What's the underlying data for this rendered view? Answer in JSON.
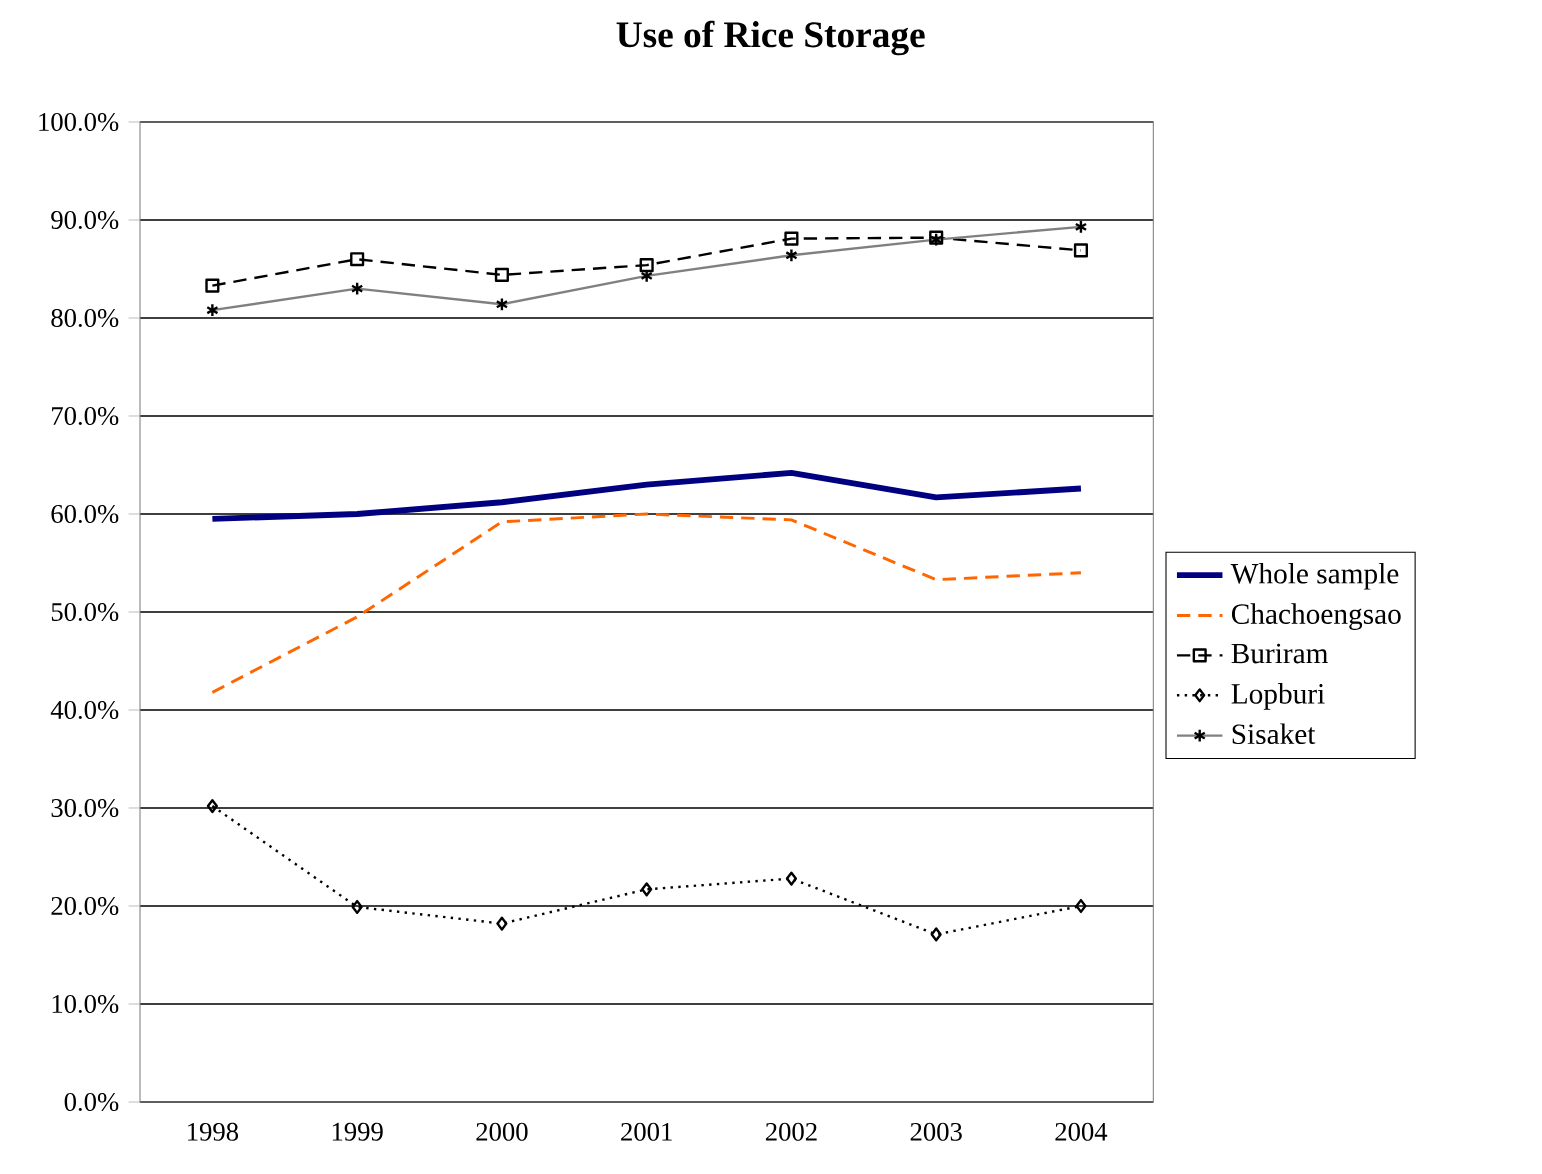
{
  "chart_data": {
    "type": "line",
    "title": "Use of Rice Storage",
    "categories": [
      "1998",
      "1999",
      "2000",
      "2001",
      "2002",
      "2003",
      "2004"
    ],
    "series": [
      {
        "name": "Whole sample",
        "color": "#000080",
        "values": [
          59.5,
          60.0,
          61.2,
          63.0,
          64.2,
          61.7,
          62.6
        ],
        "line_style": "solid",
        "marker": "none"
      },
      {
        "name": "Chachoengsao",
        "color": "#ff6600",
        "values": [
          41.8,
          49.5,
          59.2,
          60.0,
          59.4,
          53.3,
          54.0
        ],
        "line_style": "dashed",
        "marker": "none"
      },
      {
        "name": "Buriram",
        "color": "#000000",
        "values": [
          83.3,
          86.0,
          84.4,
          85.4,
          88.1,
          88.2,
          86.9
        ],
        "line_style": "dashed",
        "marker": "square"
      },
      {
        "name": "Lopburi",
        "color": "#000000",
        "values": [
          30.2,
          19.9,
          18.2,
          21.7,
          22.8,
          17.1,
          20.0
        ],
        "line_style": "dotted",
        "marker": "diamond"
      },
      {
        "name": "Sisaket",
        "color": "#808080",
        "values": [
          80.8,
          83.0,
          81.4,
          84.3,
          86.4,
          88.0,
          89.3
        ],
        "line_style": "solid",
        "marker": "cross"
      }
    ],
    "ylim": [
      0,
      100
    ],
    "yticks": [
      {
        "value": 0,
        "label": "0.0%"
      },
      {
        "value": 10,
        "label": "10.0%"
      },
      {
        "value": 20,
        "label": "20.0%"
      },
      {
        "value": 30,
        "label": "30.0%"
      },
      {
        "value": 40,
        "label": "40.0%"
      },
      {
        "value": 50,
        "label": "50.0%"
      },
      {
        "value": 60,
        "label": "60.0%"
      },
      {
        "value": 70,
        "label": "70.0%"
      },
      {
        "value": 80,
        "label": "80.0%"
      },
      {
        "value": 90,
        "label": "90.0%"
      },
      {
        "value": 100,
        "label": "100.0%"
      }
    ],
    "grid": "y",
    "legend": "right"
  }
}
